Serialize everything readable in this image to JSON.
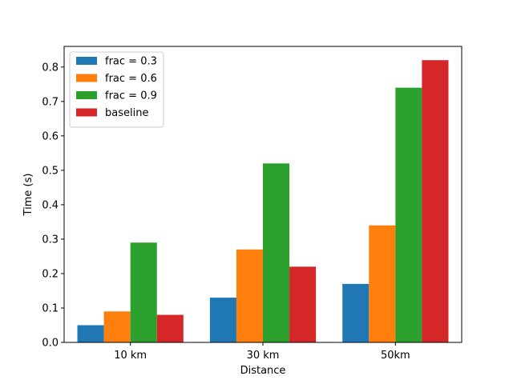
{
  "chart_data": {
    "type": "bar",
    "title": "",
    "xlabel": "Distance",
    "ylabel": "Time (s)",
    "ylim": [
      0,
      0.86
    ],
    "yticks": [
      0.0,
      0.1,
      0.2,
      0.3,
      0.4,
      0.5,
      0.6,
      0.7,
      0.8
    ],
    "ytick_labels": [
      "0.0",
      "0.1",
      "0.2",
      "0.3",
      "0.4",
      "0.5",
      "0.6",
      "0.7",
      "0.8"
    ],
    "categories": [
      "10 km",
      "30 km",
      "50km"
    ],
    "series": [
      {
        "name": "frac = 0.3",
        "color": "#1f77b4",
        "values": [
          0.05,
          0.13,
          0.17
        ]
      },
      {
        "name": "frac = 0.6",
        "color": "#ff7f0e",
        "values": [
          0.09,
          0.27,
          0.34
        ]
      },
      {
        "name": "frac = 0.9",
        "color": "#2ca02c",
        "values": [
          0.29,
          0.52,
          0.74
        ]
      },
      {
        "name": "baseline",
        "color": "#d62728",
        "values": [
          0.08,
          0.22,
          0.82
        ]
      }
    ],
    "legend_position": "upper-left",
    "grid": false
  }
}
